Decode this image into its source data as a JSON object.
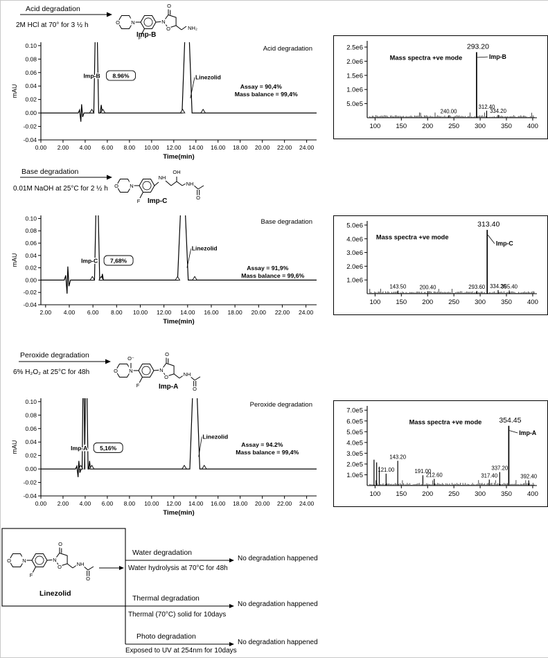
{
  "colors": {
    "ink": "#000000",
    "panel_border": "#000000"
  },
  "sections": [
    {
      "header": {
        "title": "Acid degradation",
        "condition": "2M HCl at 70° for 3 ½ h",
        "impurity": "Imp-B",
        "structure_labels": [
          "O",
          "N",
          "F",
          "N",
          "O",
          "O",
          "NH₂"
        ]
      }
    },
    {
      "header": {
        "title": "Base degradation",
        "condition": "0.01M NaOH at 25°C for 2 ½ h",
        "impurity": "Imp-C",
        "structure_labels": [
          "O",
          "N",
          "F",
          "NH",
          "OH",
          "NH",
          "O"
        ]
      }
    },
    {
      "header": {
        "title": "Peroxide degradation",
        "condition": "6% H₂O₂ at 25°C for 48h",
        "impurity": "Imp-A",
        "structure_labels": [
          "O",
          "N",
          "O⁻",
          "F",
          "N",
          "O",
          "O",
          "NH",
          "O"
        ]
      }
    }
  ],
  "chart_data": [
    {
      "id": "acid-chromatogram",
      "type": "line",
      "kind": "chromatogram",
      "title": "Acid degradation",
      "xlabel": "Time(min)",
      "ylabel": "mAU",
      "xlim": [
        0,
        24.9
      ],
      "ylim": [
        -0.04,
        0.105
      ],
      "xtick_vals": [
        0,
        2,
        4,
        6,
        8,
        10,
        12,
        14,
        16,
        18,
        20,
        22,
        24
      ],
      "xticks": [
        "0.00",
        "2.00",
        "4.00",
        "6.00",
        "8.00",
        "10.00",
        "12.00",
        "14.00",
        "16.00",
        "18.00",
        "20.00",
        "22.00",
        "24.00"
      ],
      "ytick_vals": [
        0.1,
        0.08,
        0.06,
        0.04,
        0.02,
        0,
        -0.02,
        -0.04
      ],
      "yticks": [
        "0.10",
        "0.08",
        "0.06",
        "0.04",
        "0.02",
        "0.00",
        "-0.02",
        "-0.04"
      ],
      "noise": {
        "at": 3.7,
        "amp": 0.013
      },
      "peaks": [
        {
          "name": "Imp-B",
          "pct": "8.96%",
          "rt": 5.0,
          "h": 0.2,
          "hw": 0.22,
          "label_pos": [
            3.85,
            0.052
          ]
        },
        {
          "name": "Linezolid",
          "rt": 13.2,
          "h": 0.2,
          "hw": 0.45,
          "label_pos": [
            13.95,
            0.05
          ],
          "leader": [
            13.5,
            0.022
          ]
        }
      ],
      "spikes": [
        {
          "rt": 5.45,
          "h": 0.012,
          "hw": 0.09
        }
      ],
      "base_markers": [
        4.6,
        5.6,
        12.8,
        14.65
      ],
      "assay": "Assay = 90,4%",
      "mass_balance": "Mass balance = 99,4%",
      "assay_pos": [
        18.0,
        0.036
      ]
    },
    {
      "id": "acid-mass-spectrum",
      "type": "bar",
      "kind": "mass-spectrum",
      "note": "Mass spectra +ve mode",
      "note_pos": [
        128,
        2050000
      ],
      "xlim": [
        85,
        408
      ],
      "ylim": [
        0,
        2720000
      ],
      "ytick_vals": [
        2500000,
        2000000,
        1500000,
        1000000,
        500000
      ],
      "yticks": [
        "2.5e6",
        "2.0e6",
        "1.5e6",
        "1.0e6",
        "5.0e5"
      ],
      "xtick_vals": [
        100,
        150,
        200,
        250,
        300,
        350,
        400
      ],
      "xticks": [
        "100",
        "150",
        "200",
        "250",
        "300",
        "350",
        "400"
      ],
      "main": {
        "mz": 293.2,
        "label": "293.20",
        "intensity": 2320000,
        "name": "Imp-B",
        "name_pos": [
          317,
          2080000
        ]
      },
      "peaks": [
        {
          "mz": 240.0,
          "label": "240.00",
          "intensity": 80000
        },
        {
          "mz": 312.4,
          "label": "312.40",
          "intensity": 250000
        },
        {
          "mz": 334.2,
          "label": "334.20",
          "intensity": 100000
        }
      ]
    },
    {
      "id": "base-chromatogram",
      "type": "line",
      "kind": "chromatogram",
      "title": "Base degradation",
      "xlabel": "Time(min)",
      "ylabel": "mAU",
      "xlim": [
        1.6,
        24.9
      ],
      "ylim": [
        -0.04,
        0.105
      ],
      "xtick_vals": [
        2,
        4,
        6,
        8,
        10,
        12,
        14,
        16,
        18,
        20,
        22,
        24
      ],
      "xticks": [
        "2.00",
        "4.00",
        "6.00",
        "8.00",
        "10.00",
        "12.00",
        "14.00",
        "16.00",
        "18.00",
        "20.00",
        "22.00",
        "24.00"
      ],
      "ytick_vals": [
        0.1,
        0.08,
        0.06,
        0.04,
        0.02,
        0,
        -0.02,
        -0.04
      ],
      "yticks": [
        "0.10",
        "0.08",
        "0.06",
        "0.04",
        "0.02",
        "0.00",
        "-0.02",
        "-0.04"
      ],
      "noise": {
        "at": 3.9,
        "amp": 0.022
      },
      "peaks": [
        {
          "name": "Imp-C",
          "pct": "7,68%",
          "rt": 6.35,
          "h": 0.2,
          "hw": 0.22,
          "label_pos": [
            5.0,
            0.028
          ]
        },
        {
          "name": "Linezolid",
          "rt": 13.6,
          "h": 0.2,
          "hw": 0.45,
          "label_pos": [
            14.35,
            0.048
          ],
          "leader": [
            13.95,
            0.02
          ]
        }
      ],
      "spikes": [
        {
          "rt": 6.8,
          "h": 0.01,
          "hw": 0.08
        }
      ],
      "base_markers": [
        5.95,
        6.7,
        13.15,
        14.6
      ],
      "assay": "Assay = 91,9%",
      "mass_balance": "Mass balance = 99,6%",
      "assay_pos": [
        19.0,
        0.016
      ]
    },
    {
      "id": "base-mass-spectrum",
      "type": "bar",
      "kind": "mass-spectrum",
      "note": "Mass spectra +ve mode",
      "note_pos": [
        102,
        3950000
      ],
      "xlim": [
        85,
        408
      ],
      "ylim": [
        0,
        5300000
      ],
      "ytick_vals": [
        5000000,
        4000000,
        3000000,
        2000000,
        1000000
      ],
      "yticks": [
        "5.0e6",
        "4.0e6",
        "3.0e6",
        "2.0e6",
        "1.0e6"
      ],
      "xtick_vals": [
        100,
        150,
        200,
        250,
        300,
        350,
        400
      ],
      "xticks": [
        "100",
        "150",
        "200",
        "250",
        "300",
        "350",
        "400"
      ],
      "main": {
        "mz": 313.4,
        "label": "313.40",
        "intensity": 4650000,
        "name": "Imp-C",
        "name_pos": [
          330,
          3500000
        ]
      },
      "peaks": [
        {
          "mz": 143.5,
          "label": "143.50",
          "intensity": 220000
        },
        {
          "mz": 200.4,
          "label": "200.40",
          "intensity": 180000
        },
        {
          "mz": 293.6,
          "label": "293.60",
          "intensity": 200000
        },
        {
          "mz": 334.2,
          "label": "334.20",
          "intensity": 260000
        },
        {
          "mz": 355.4,
          "label": "355.40",
          "intensity": 230000
        }
      ]
    },
    {
      "id": "peroxide-chromatogram",
      "type": "line",
      "kind": "chromatogram",
      "title": "Peroxide degradation",
      "xlabel": "Time(min)",
      "ylabel": "mAU",
      "xlim": [
        0,
        24.9
      ],
      "ylim": [
        -0.04,
        0.105
      ],
      "xtick_vals": [
        0,
        2,
        4,
        6,
        8,
        10,
        12,
        14,
        16,
        18,
        20,
        22,
        24
      ],
      "xticks": [
        "0.00",
        "2.00",
        "4.00",
        "6.00",
        "8.00",
        "10.00",
        "12.00",
        "14.00",
        "16.00",
        "18.00",
        "20.00",
        "22.00",
        "24.00"
      ],
      "ytick_vals": [
        0.1,
        0.08,
        0.06,
        0.04,
        0.02,
        0,
        -0.02,
        -0.04
      ],
      "yticks": [
        "0.10",
        "0.08",
        "0.06",
        "0.04",
        "0.02",
        "0.00",
        "-0.02",
        "-0.04"
      ],
      "noise": {
        "at": 3.45,
        "amp": 0.012
      },
      "peaks": [
        {
          "name": "Imp-A",
          "pct": "5,16%",
          "rt": 4.1,
          "h": 0.2,
          "hw": 0.16,
          "label_pos": [
            2.7,
            0.028
          ]
        },
        {
          "name": "Linezolid",
          "rt": 13.9,
          "h": 0.2,
          "hw": 0.45,
          "label_pos": [
            14.6,
            0.045
          ],
          "leader": [
            14.25,
            0.018
          ]
        }
      ],
      "spikes": [
        {
          "rt": 3.85,
          "h": 0.2,
          "hw": 0.12
        },
        {
          "rt": 4.4,
          "h": 0.012,
          "hw": 0.08
        }
      ],
      "base_markers": [
        3.6,
        4.6,
        12.95,
        14.75
      ],
      "assay": "Assay = 94.2%",
      "mass_balance": "Mass balance = 99,4%",
      "assay_pos": [
        18.1,
        0.033
      ]
    },
    {
      "id": "peroxide-mass-spectrum",
      "type": "bar",
      "kind": "mass-spectrum",
      "note": "Mass spectra +ve mode",
      "note_pos": [
        165,
        570000
      ],
      "xlim": [
        85,
        408
      ],
      "ylim": [
        0,
        740000
      ],
      "ytick_vals": [
        700000,
        600000,
        500000,
        400000,
        300000,
        200000,
        100000
      ],
      "yticks": [
        "7.0e5",
        "6.0e5",
        "5.0e5",
        "4.0e5",
        "3.0e5",
        "2.0e5",
        "1.0e5"
      ],
      "xtick_vals": [
        100,
        150,
        200,
        250,
        300,
        350,
        400
      ],
      "xticks": [
        "100",
        "150",
        "200",
        "250",
        "300",
        "350",
        "400"
      ],
      "main": {
        "mz": 354.45,
        "label": "354.45",
        "intensity": 555000,
        "name": "Imp-A",
        "name_pos": [
          374,
          470000
        ]
      },
      "peaks": [
        {
          "mz": 98,
          "intensity": 240000
        },
        {
          "mz": 103,
          "intensity": 215000
        },
        {
          "mz": 108,
          "intensity": 175000
        },
        {
          "mz": 121.0,
          "label": "121.00",
          "intensity": 110000
        },
        {
          "mz": 143.2,
          "label": "143.20",
          "intensity": 230000
        },
        {
          "mz": 191.0,
          "label": "191.00",
          "intensity": 95000
        },
        {
          "mz": 212.6,
          "label": "212.60",
          "intensity": 62000
        },
        {
          "mz": 317.4,
          "label": "317.40",
          "intensity": 55000
        },
        {
          "mz": 337.2,
          "label": "337.20",
          "intensity": 125000
        },
        {
          "mz": 392.4,
          "label": "392.40",
          "intensity": 48000
        }
      ]
    }
  ],
  "bottom": {
    "compound": "Linezolid",
    "structure_labels": [
      "O",
      "N",
      "F",
      "N",
      "O",
      "O",
      "NH",
      "O"
    ],
    "branches": [
      {
        "title": "Water degradation",
        "condition": "Water hydrolysis at 70°C for 48h",
        "result": "No degradation happened"
      },
      {
        "title": "Thermal degradation",
        "condition": "Thermal (70°C) solid for 10days",
        "result": "No degradation happened"
      },
      {
        "title": "Photo degradation",
        "condition": "Exposed to UV at 254nm for 10days",
        "result": "No degradation happened"
      }
    ]
  }
}
